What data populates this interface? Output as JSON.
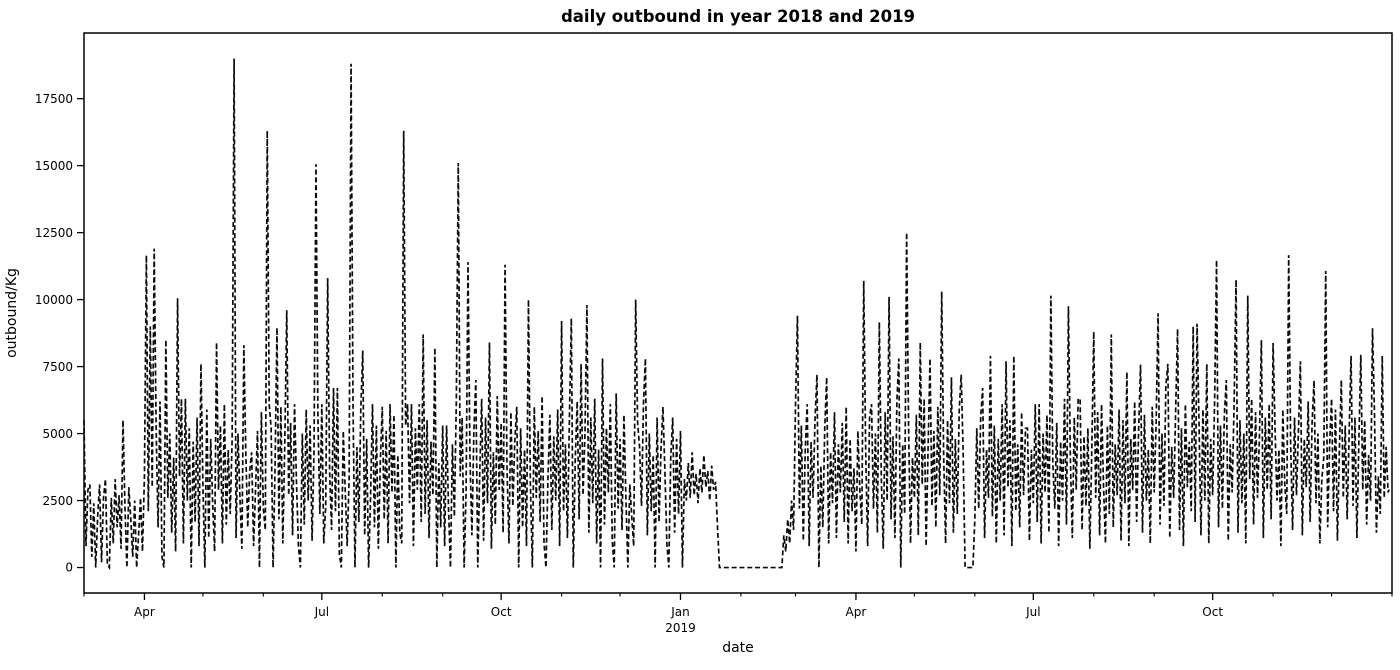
{
  "chart_data": {
    "type": "line",
    "title": "daily outbound in year 2018 and 2019",
    "xlabel": "date",
    "ylabel": "outbound/Kg",
    "line_color": "#0a0a0a",
    "line_style": "dashed",
    "dash_pattern": "5,2.8",
    "line_width": 1.7,
    "background": "#ffffff",
    "grid": false,
    "legend": "none",
    "x_start_date": "2018-03-01",
    "x_end_date": "2019-12-31",
    "x_total_days": 671,
    "ylim": [
      -950,
      19950
    ],
    "yticks": [
      0,
      2500,
      5000,
      7500,
      10000,
      12500,
      15000,
      17500
    ],
    "xticks_major": [
      {
        "day": 31,
        "label": "Apr",
        "sublabel": ""
      },
      {
        "day": 122,
        "label": "Jul",
        "sublabel": ""
      },
      {
        "day": 214,
        "label": "Oct",
        "sublabel": ""
      },
      {
        "day": 306,
        "label": "Jan",
        "sublabel": "2019"
      },
      {
        "day": 396,
        "label": "Apr",
        "sublabel": ""
      },
      {
        "day": 487,
        "label": "Jul",
        "sublabel": ""
      },
      {
        "day": 579,
        "label": "Oct",
        "sublabel": ""
      }
    ],
    "xticks_minor_days": [
      0,
      61,
      92,
      153,
      184,
      245,
      275,
      337,
      365,
      426,
      457,
      518,
      549,
      610,
      640,
      671
    ],
    "notable_peaks": [
      {
        "date": "2018-05-17",
        "value": 19000
      },
      {
        "date": "2018-07-16",
        "value": 18800
      },
      {
        "date": "2018-06-03",
        "value": 16300
      },
      {
        "date": "2018-08-12",
        "value": 16300
      },
      {
        "date": "2018-09-08",
        "value": 15100
      },
      {
        "date": "2018-06-28",
        "value": 15050
      },
      {
        "date": "2019-04-26",
        "value": 12500
      },
      {
        "date": "2018-04-05",
        "value": 11900
      },
      {
        "date": "2019-11-09",
        "value": 11660
      },
      {
        "date": "2019-10-03",
        "value": 11480
      },
      {
        "date": "2018-10-03",
        "value": 11300
      }
    ],
    "zero_gap": {
      "from": "2019-01-21",
      "to": "2019-02-22"
    },
    "values": [
      5500,
      800,
      2900,
      3100,
      400,
      2400,
      0,
      1900,
      3100,
      200,
      2600,
      3300,
      100,
      0,
      2600,
      900,
      3300,
      1500,
      2700,
      700,
      5500,
      2300,
      0,
      3000,
      1800,
      400,
      2500,
      0,
      1200,
      2600,
      600,
      3400,
      11650,
      2100,
      9000,
      3000,
      11900,
      5200,
      1500,
      6200,
      400,
      0,
      8500,
      2600,
      5000,
      1300,
      4100,
      600,
      10050,
      3400,
      6300,
      900,
      6300,
      2500,
      5200,
      0,
      4700,
      1700,
      5600,
      800,
      7600,
      3100,
      0,
      5900,
      1100,
      4800,
      2400,
      600,
      8400,
      2900,
      5300,
      900,
      6100,
      1600,
      4400,
      2000,
      4800,
      19000,
      1100,
      5000,
      2600,
      700,
      8300,
      4300,
      1500,
      3600,
      4300,
      800,
      2900,
      5100,
      0,
      5800,
      2200,
      1400,
      16300,
      6100,
      5200,
      0,
      3700,
      8950,
      1800,
      6000,
      900,
      4600,
      9600,
      2700,
      5400,
      1200,
      6100,
      3200,
      800,
      0,
      5000,
      1600,
      5900,
      2500,
      5300,
      1000,
      4400,
      15050,
      5600,
      2000,
      6100,
      900,
      2300,
      10800,
      3600,
      1400,
      6700,
      2100,
      6700,
      500,
      0,
      5100,
      2900,
      800,
      3300,
      18800,
      6100,
      0,
      4500,
      1700,
      5900,
      8100,
      1200,
      4800,
      0,
      2600,
      6100,
      1500,
      5300,
      700,
      3900,
      6000,
      1800,
      5100,
      900,
      6100,
      2800,
      5700,
      0,
      4200,
      1300,
      900,
      16300,
      5300,
      6100,
      2400,
      6100,
      800,
      5200,
      2900,
      6100,
      1700,
      8700,
      2000,
      5500,
      1100,
      4700,
      2700,
      8200,
      0,
      3900,
      1500,
      5300,
      800,
      5300,
      2200,
      0,
      4600,
      1900,
      6200,
      15100,
      3400,
      5600,
      0,
      2800,
      11400,
      4100,
      1200,
      5100,
      7000,
      0,
      3500,
      6300,
      1000,
      5600,
      2400,
      8400,
      700,
      4300,
      1600,
      6400,
      2900,
      5400,
      1300,
      11300,
      3700,
      900,
      5800,
      2300,
      4700,
      6000,
      0,
      5200,
      1500,
      4400,
      800,
      10000,
      3100,
      0,
      6000,
      2600,
      5100,
      1700,
      6400,
      900,
      0,
      3300,
      5700,
      1400,
      4900,
      2500,
      5900,
      800,
      9200,
      2100,
      4600,
      1100,
      5500,
      9300,
      0,
      4000,
      6200,
      1800,
      7600,
      2700,
      5000,
      9800,
      1300,
      5600,
      2400,
      6300,
      900,
      4400,
      0,
      7800,
      1600,
      5200,
      2800,
      6100,
      1000,
      0,
      6500,
      2200,
      4800,
      1400,
      5700,
      2600,
      0,
      3100,
      1900,
      800,
      10000,
      5400,
      4500,
      2300,
      6100,
      7800,
      1200,
      5000,
      2100,
      4200,
      0,
      5600,
      1700,
      4400,
      6000,
      3600,
      900,
      0,
      4100,
      5600,
      1300,
      4800,
      2000,
      5100,
      0,
      3300,
      2500,
      3900,
      2600,
      4300,
      2700,
      3500,
      2400,
      3700,
      2800,
      4200,
      3000,
      3600,
      2500,
      3800,
      2900,
      3200,
      1500,
      0,
      0,
      0,
      0,
      0,
      0,
      0,
      0,
      0,
      0,
      0,
      0,
      0,
      0,
      0,
      0,
      0,
      0,
      0,
      0,
      0,
      0,
      0,
      0,
      0,
      0,
      0,
      0,
      0,
      0,
      0,
      0,
      0,
      1200,
      600,
      1800,
      900,
      2500,
      1400,
      6100,
      9400,
      2200,
      5300,
      1000,
      4400,
      6100,
      800,
      4700,
      2600,
      5500,
      7200,
      0,
      3800,
      1500,
      5200,
      7100,
      900,
      4300,
      2400,
      5800,
      1100,
      4600,
      2800,
      5400,
      1700,
      6000,
      900,
      4800,
      2100,
      3700,
      600,
      5100,
      2900,
      1600,
      10700,
      4400,
      800,
      5600,
      6100,
      2200,
      5000,
      1300,
      9160,
      3400,
      700,
      5800,
      2500,
      10100,
      1800,
      4900,
      1100,
      6200,
      7800,
      0,
      4600,
      2000,
      12500,
      5300,
      900,
      4100,
      2600,
      5700,
      1200,
      8400,
      3100,
      6300,
      800,
      4400,
      7800,
      2300,
      5100,
      1500,
      6000,
      2700,
      10300,
      4200,
      900,
      5500,
      2400,
      7100,
      1300,
      4800,
      2000,
      5900,
      7200,
      4300,
      0,
      0,
      0,
      0,
      0,
      1800,
      5200,
      2200,
      5600,
      6700,
      1100,
      4400,
      2600,
      7900,
      1900,
      5300,
      900,
      4800,
      2500,
      6100,
      1200,
      7700,
      3000,
      5500,
      800,
      7900,
      2100,
      4600,
      1500,
      5800,
      2700,
      5200,
      5200,
      1000,
      4400,
      2400,
      6100,
      1700,
      6100,
      900,
      5000,
      2800,
      5700,
      1300,
      10150,
      3900,
      2200,
      5400,
      800,
      4700,
      2500,
      6300,
      1600,
      9750,
      4100,
      1100,
      5600,
      2900,
      6300,
      6300,
      1400,
      4900,
      2300,
      5200,
      700,
      4400,
      8800,
      2600,
      5800,
      1200,
      6100,
      3100,
      900,
      5300,
      2000,
      8700,
      1500,
      4600,
      2700,
      5900,
      1000,
      5500,
      2400,
      7300,
      800,
      4800,
      2900,
      6200,
      1700,
      5100,
      7570,
      1300,
      5700,
      2500,
      4400,
      900,
      6000,
      2800,
      5400,
      9490,
      1600,
      5000,
      2300,
      6800,
      7600,
      1100,
      4500,
      2600,
      5800,
      8900,
      1400,
      5200,
      800,
      6100,
      3000,
      4700,
      2100,
      9000,
      1700,
      9100,
      5400,
      1200,
      5900,
      2500,
      7600,
      900,
      4800,
      2700,
      6200,
      11480,
      1500,
      5300,
      2200,
      5700,
      7000,
      1000,
      4600,
      2800,
      6100,
      10740,
      1300,
      5500,
      2400,
      5000,
      900,
      10150,
      3300,
      6300,
      1600,
      5800,
      2600,
      4900,
      8490,
      1100,
      5600,
      2900,
      6100,
      1800,
      8380,
      5200,
      2500,
      4400,
      800,
      5900,
      3100,
      2000,
      11660,
      4700,
      1400,
      5600,
      2700,
      5100,
      7700,
      1200,
      4800,
      3000,
      6200,
      1700,
      5400,
      6980,
      2400,
      5000,
      900,
      3300,
      4100,
      11070,
      1500,
      4600,
      6300,
      2100,
      5900,
      1000,
      4400,
      7000,
      2600,
      5300,
      1800,
      5000,
      7900,
      2300,
      5600,
      1100,
      4700,
      7940,
      2900,
      5500,
      1600,
      4200,
      2500,
      8930,
      5800,
      1300,
      3400,
      2000,
      7900,
      2600,
      4500,
      2800,
      3000
    ]
  }
}
